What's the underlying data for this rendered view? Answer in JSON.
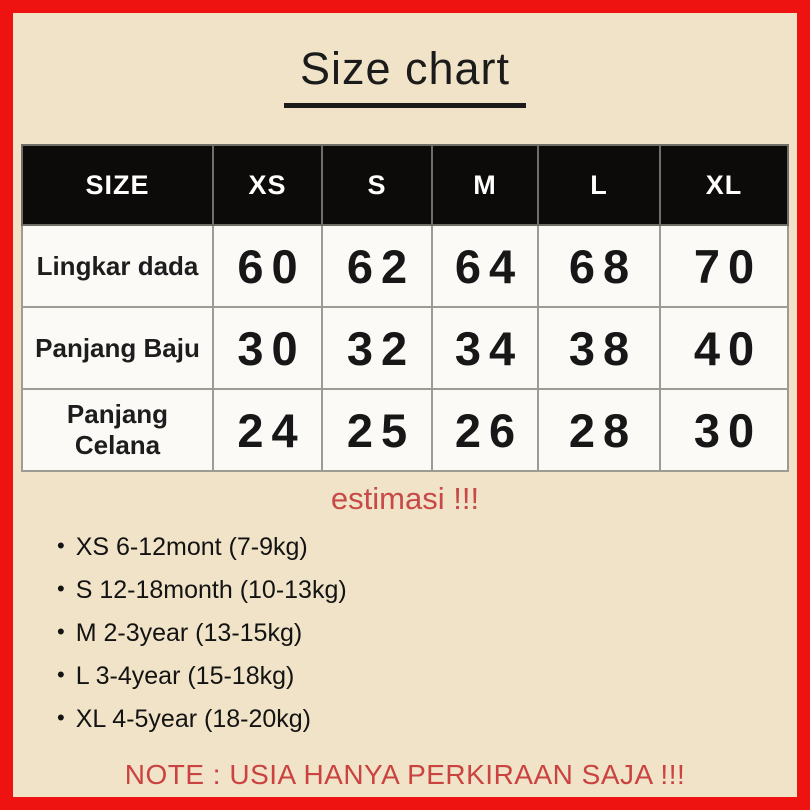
{
  "title": "Size chart",
  "colors": {
    "border_red": "#ee1211",
    "background_beige": "#f0e3c7",
    "table_header_bg": "#0d0b09",
    "table_header_text": "#ffffff",
    "table_cell_bg": "#fbfaf7",
    "accent_red_text": "#c84a48",
    "title_text": "#1b1b1b"
  },
  "chart_data": {
    "type": "table",
    "columns": [
      "SIZE",
      "XS",
      "S",
      "M",
      "L",
      "XL"
    ],
    "rows": [
      {
        "label": "Lingkar dada",
        "values": [
          "60",
          "62",
          "64",
          "68",
          "70"
        ]
      },
      {
        "label": "Panjang Baju",
        "values": [
          "30",
          "32",
          "34",
          "38",
          "40"
        ]
      },
      {
        "label": "Panjang Celana",
        "values": [
          "24",
          "25",
          "26",
          "28",
          "30"
        ]
      }
    ]
  },
  "estimasi_label": "estimasi !!!",
  "bullet_glyph": "•",
  "size_notes": [
    "XS 6-12mont (7-9kg)",
    "S 12-18month (10-13kg)",
    "M 2-3year (13-15kg)",
    "L 3-4year (15-18kg)",
    "XL 4-5year (18-20kg)"
  ],
  "bottom_note": "NOTE : USIA HANYA PERKIRAAN SAJA !!!"
}
